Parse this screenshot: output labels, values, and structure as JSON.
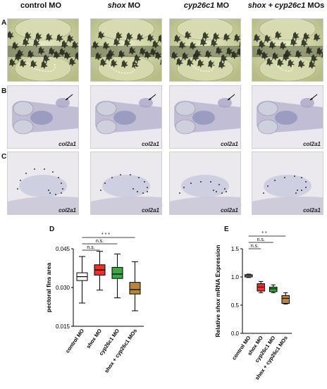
{
  "figure": {
    "columns": [
      {
        "plain": "control MO",
        "italic": ""
      },
      {
        "plain": " MO",
        "italic": "shox"
      },
      {
        "plain": " MO",
        "italic": "cyp26c1"
      },
      {
        "plain": " MOs",
        "italic": "shox + cyp26c1"
      }
    ],
    "rows": [
      {
        "label": "A"
      },
      {
        "label": "B",
        "gene": "col2a1"
      },
      {
        "label": "C",
        "gene": "col2a1"
      }
    ],
    "panel_d_label": "D",
    "panel_e_label": "E"
  },
  "chart_data": [
    {
      "type": "box",
      "ylabel": "pectoral fins area",
      "ylim": [
        0.015,
        0.045
      ],
      "yticks": [
        "0.015",
        "0.030",
        "0.045"
      ],
      "categories": [
        "control MO",
        "shox MO",
        "cyp26c1 MO",
        "shox + cyp26c1 MOs"
      ],
      "colors": [
        "#ffffff",
        "#e8312a",
        "#3aa845",
        "#b8863b"
      ],
      "boxes": [
        {
          "min": 0.024,
          "q1": 0.0327,
          "median": 0.0342,
          "q3": 0.0357,
          "max": 0.042
        },
        {
          "min": 0.029,
          "q1": 0.0348,
          "median": 0.0368,
          "q3": 0.0388,
          "max": 0.044
        },
        {
          "min": 0.026,
          "q1": 0.0335,
          "median": 0.0352,
          "q3": 0.0378,
          "max": 0.043
        },
        {
          "min": 0.021,
          "q1": 0.0275,
          "median": 0.0292,
          "q3": 0.032,
          "max": 0.04
        }
      ],
      "significance": [
        {
          "from": 0,
          "to": 1,
          "text": "n.s."
        },
        {
          "from": 0,
          "to": 2,
          "text": "n.s."
        },
        {
          "from": 0,
          "to": 3,
          "text": "* * *"
        }
      ]
    },
    {
      "type": "box",
      "ylabel_pre": "Relative ",
      "ylabel_italic": "shox",
      "ylabel_post": " mRNA Expression",
      "ylim": [
        0.0,
        1.5
      ],
      "yticks": [
        "0.0",
        "0.5",
        "1.0",
        "1.5"
      ],
      "categories": [
        "control MO",
        "shox MO",
        "cyp26c1 MO",
        "shox + cyp26c1 MOs"
      ],
      "colors": [
        "#ffffff",
        "#e8312a",
        "#3aa845",
        "#b8863b"
      ],
      "boxes": [
        {
          "min": 0.99,
          "q1": 1.0,
          "median": 1.02,
          "q3": 1.04,
          "max": 1.05
        },
        {
          "min": 0.72,
          "q1": 0.75,
          "median": 0.82,
          "q3": 0.88,
          "max": 0.92
        },
        {
          "min": 0.72,
          "q1": 0.74,
          "median": 0.79,
          "q3": 0.82,
          "max": 0.86
        },
        {
          "min": 0.52,
          "q1": 0.53,
          "median": 0.62,
          "q3": 0.67,
          "max": 0.72
        }
      ],
      "significance": [
        {
          "from": 0,
          "to": 1,
          "text": "n.s."
        },
        {
          "from": 0,
          "to": 2,
          "text": "n.s."
        },
        {
          "from": 0,
          "to": 3,
          "text": "* *"
        }
      ]
    }
  ]
}
